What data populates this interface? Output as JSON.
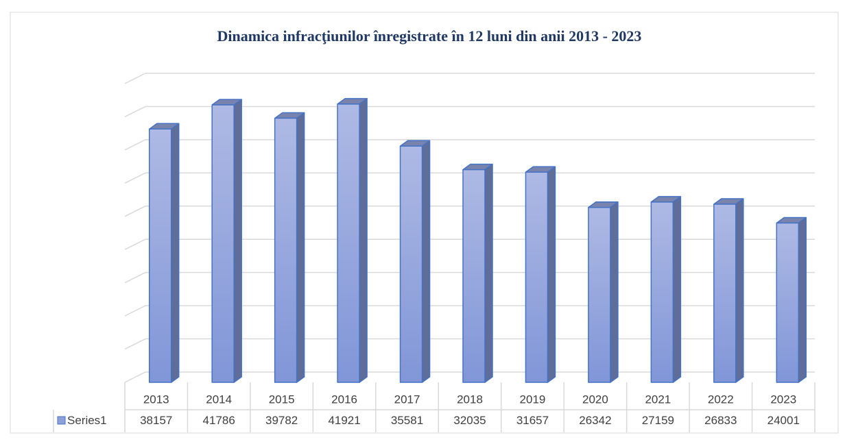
{
  "chart_data": {
    "type": "bar",
    "title": "Dinamica infracţiunilor înregistrate în 12 luni din anii 2013 - 2023",
    "categories": [
      "2013",
      "2014",
      "2015",
      "2016",
      "2017",
      "2018",
      "2019",
      "2020",
      "2021",
      "2022",
      "2023"
    ],
    "series": [
      {
        "name": "Series1",
        "color": "#8ea0dc",
        "values": [
          38157,
          41786,
          39782,
          41921,
          35581,
          32035,
          31657,
          26342,
          27159,
          26833,
          24001
        ]
      }
    ],
    "ylim": [
      0,
      45000
    ],
    "yticks": [
      0,
      5000,
      10000,
      15000,
      20000,
      25000,
      30000,
      35000,
      40000,
      45000
    ],
    "grid": true,
    "data_table": true
  }
}
